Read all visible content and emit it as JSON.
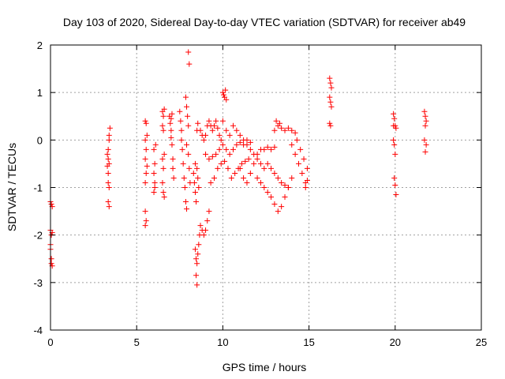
{
  "chart_data": {
    "type": "scatter",
    "title": "Day 103 of 2020, Sidereal Day-to-day VTEC variation (SDTVAR) for receiver ab49",
    "xlabel": "GPS time / hours",
    "ylabel": "SDTVAR / TECUs",
    "xlim": [
      0,
      25
    ],
    "ylim": [
      -4,
      2
    ],
    "xticks": [
      0,
      5,
      10,
      15,
      20,
      25
    ],
    "yticks": [
      -4,
      -3,
      -2,
      -1,
      0,
      1,
      2
    ],
    "xtick_labels": [
      "0",
      "5",
      "10",
      "15",
      "20",
      "25"
    ],
    "ytick_labels": [
      "-4",
      "-3",
      "-2",
      "-1",
      "0",
      "1",
      "2"
    ],
    "grid": true,
    "marker": "+",
    "color": "#ff0000",
    "series": [
      {
        "name": "SDTVAR",
        "points": [
          [
            0.0,
            -1.3
          ],
          [
            0.05,
            -1.35
          ],
          [
            0.1,
            -1.4
          ],
          [
            0.0,
            -1.9
          ],
          [
            0.05,
            -2.0
          ],
          [
            0.1,
            -1.95
          ],
          [
            0.0,
            -2.3
          ],
          [
            0.05,
            -2.5
          ],
          [
            0.05,
            -2.6
          ],
          [
            0.1,
            -2.65
          ],
          [
            0.0,
            -2.2
          ],
          [
            3.3,
            -0.3
          ],
          [
            3.35,
            -0.4
          ],
          [
            3.4,
            -0.5
          ],
          [
            3.35,
            -0.2
          ],
          [
            3.4,
            0.0
          ],
          [
            3.4,
            0.1
          ],
          [
            3.45,
            0.25
          ],
          [
            3.35,
            -0.9
          ],
          [
            3.4,
            -1.0
          ],
          [
            3.35,
            -1.3
          ],
          [
            3.4,
            -1.4
          ],
          [
            3.35,
            -0.7
          ],
          [
            3.3,
            -0.55
          ],
          [
            5.5,
            0.4
          ],
          [
            5.55,
            0.35
          ],
          [
            5.5,
            0.0
          ],
          [
            5.55,
            -0.2
          ],
          [
            5.5,
            -0.4
          ],
          [
            5.55,
            -0.7
          ],
          [
            5.5,
            -0.9
          ],
          [
            5.5,
            -1.5
          ],
          [
            5.55,
            -1.7
          ],
          [
            5.5,
            -1.8
          ],
          [
            5.6,
            -0.55
          ],
          [
            5.6,
            0.1
          ],
          [
            6.0,
            -0.2
          ],
          [
            6.05,
            -0.5
          ],
          [
            6.0,
            -0.7
          ],
          [
            6.05,
            -0.9
          ],
          [
            6.1,
            -0.1
          ],
          [
            6.0,
            -1.1
          ],
          [
            6.05,
            -1.0
          ],
          [
            6.5,
            0.6
          ],
          [
            6.55,
            0.5
          ],
          [
            6.5,
            0.3
          ],
          [
            6.55,
            0.2
          ],
          [
            6.5,
            -0.4
          ],
          [
            6.55,
            -0.6
          ],
          [
            6.5,
            -0.9
          ],
          [
            6.55,
            -1.1
          ],
          [
            6.6,
            -1.2
          ],
          [
            6.6,
            -0.3
          ],
          [
            6.6,
            0.65
          ],
          [
            6.9,
            0.5
          ],
          [
            6.95,
            0.35
          ],
          [
            7.0,
            0.2
          ],
          [
            7.0,
            0.05
          ],
          [
            7.05,
            -0.1
          ],
          [
            7.1,
            -0.4
          ],
          [
            7.1,
            -0.6
          ],
          [
            7.15,
            -0.8
          ],
          [
            7.0,
            0.45
          ],
          [
            7.05,
            0.55
          ],
          [
            7.5,
            0.6
          ],
          [
            7.55,
            0.4
          ],
          [
            7.6,
            0.2
          ],
          [
            7.6,
            0.0
          ],
          [
            7.65,
            -0.2
          ],
          [
            7.7,
            -0.5
          ],
          [
            7.75,
            -0.8
          ],
          [
            7.8,
            -1.0
          ],
          [
            7.85,
            -1.3
          ],
          [
            7.9,
            -1.45
          ],
          [
            7.85,
            0.9
          ],
          [
            7.9,
            0.7
          ],
          [
            7.95,
            0.5
          ],
          [
            8.0,
            0.3
          ],
          [
            7.9,
            -0.1
          ],
          [
            8.0,
            -0.3
          ],
          [
            8.05,
            -0.6
          ],
          [
            8.1,
            -0.9
          ],
          [
            8.0,
            1.85
          ],
          [
            8.05,
            1.6
          ],
          [
            8.3,
            -0.7
          ],
          [
            8.35,
            -0.9
          ],
          [
            8.4,
            -1.1
          ],
          [
            8.45,
            -1.3
          ],
          [
            8.4,
            -0.5
          ],
          [
            8.5,
            -0.6
          ],
          [
            8.55,
            -0.8
          ],
          [
            8.6,
            -1.0
          ],
          [
            8.5,
            0.2
          ],
          [
            8.55,
            0.35
          ],
          [
            8.4,
            -2.3
          ],
          [
            8.45,
            -2.5
          ],
          [
            8.5,
            -2.6
          ],
          [
            8.55,
            -2.4
          ],
          [
            8.45,
            -2.85
          ],
          [
            8.5,
            -3.05
          ],
          [
            8.6,
            -2.2
          ],
          [
            8.65,
            -2.0
          ],
          [
            8.7,
            -1.8
          ],
          [
            8.8,
            -1.9
          ],
          [
            8.9,
            -2.0
          ],
          [
            9.0,
            -1.9
          ],
          [
            9.1,
            -1.7
          ],
          [
            9.2,
            -1.5
          ],
          [
            8.7,
            0.2
          ],
          [
            8.8,
            0.1
          ],
          [
            8.9,
            0.0
          ],
          [
            9.0,
            0.1
          ],
          [
            9.1,
            0.3
          ],
          [
            9.2,
            0.4
          ],
          [
            9.3,
            0.3
          ],
          [
            9.4,
            0.2
          ],
          [
            9.5,
            0.3
          ],
          [
            9.6,
            0.4
          ],
          [
            9.7,
            0.25
          ],
          [
            9.8,
            0.1
          ],
          [
            9.9,
            0.0
          ],
          [
            9.0,
            -0.3
          ],
          [
            9.2,
            -0.4
          ],
          [
            9.4,
            -0.35
          ],
          [
            9.6,
            -0.3
          ],
          [
            9.8,
            -0.2
          ],
          [
            10.0,
            -0.1
          ],
          [
            10.2,
            -0.2
          ],
          [
            10.4,
            -0.3
          ],
          [
            10.6,
            -0.2
          ],
          [
            10.8,
            -0.1
          ],
          [
            11.0,
            -0.05
          ],
          [
            11.2,
            -0.1
          ],
          [
            11.4,
            0.0
          ],
          [
            11.6,
            -0.05
          ],
          [
            9.3,
            -0.9
          ],
          [
            9.5,
            -0.8
          ],
          [
            9.7,
            -0.6
          ],
          [
            9.9,
            -0.5
          ],
          [
            10.1,
            -0.45
          ],
          [
            10.3,
            -0.6
          ],
          [
            10.5,
            -0.8
          ],
          [
            10.7,
            -0.7
          ],
          [
            10.9,
            -0.6
          ],
          [
            11.1,
            -0.5
          ],
          [
            11.3,
            -0.45
          ],
          [
            11.5,
            -0.4
          ],
          [
            10.0,
            1.0
          ],
          [
            10.05,
            0.95
          ],
          [
            10.1,
            0.9
          ],
          [
            10.15,
            1.05
          ],
          [
            10.2,
            0.85
          ],
          [
            10.0,
            0.4
          ],
          [
            10.2,
            0.2
          ],
          [
            10.4,
            0.1
          ],
          [
            10.6,
            0.3
          ],
          [
            10.8,
            0.2
          ],
          [
            11.0,
            0.1
          ],
          [
            11.2,
            0.0
          ],
          [
            11.4,
            -0.1
          ],
          [
            11.6,
            -0.2
          ],
          [
            11.8,
            -0.3
          ],
          [
            12.0,
            -0.4
          ],
          [
            12.2,
            -0.5
          ],
          [
            12.4,
            -0.6
          ],
          [
            11.0,
            -0.6
          ],
          [
            11.2,
            -0.8
          ],
          [
            11.4,
            -0.9
          ],
          [
            11.6,
            -0.7
          ],
          [
            11.8,
            -0.5
          ],
          [
            12.0,
            -0.3
          ],
          [
            12.2,
            -0.2
          ],
          [
            12.4,
            -0.2
          ],
          [
            12.6,
            -0.15
          ],
          [
            12.8,
            -0.2
          ],
          [
            13.0,
            -0.15
          ],
          [
            12.0,
            -0.8
          ],
          [
            12.2,
            -0.9
          ],
          [
            12.4,
            -1.0
          ],
          [
            12.6,
            -1.1
          ],
          [
            12.8,
            -1.2
          ],
          [
            13.0,
            -1.35
          ],
          [
            13.2,
            -1.5
          ],
          [
            13.4,
            -1.4
          ],
          [
            13.6,
            -1.2
          ],
          [
            13.8,
            -1.0
          ],
          [
            14.0,
            -0.8
          ],
          [
            12.6,
            -0.5
          ],
          [
            12.8,
            -0.6
          ],
          [
            13.0,
            -0.7
          ],
          [
            13.2,
            -0.8
          ],
          [
            13.4,
            -0.9
          ],
          [
            13.6,
            -0.95
          ],
          [
            13.8,
            -1.0
          ],
          [
            13.0,
            0.2
          ],
          [
            13.2,
            0.3
          ],
          [
            13.4,
            0.25
          ],
          [
            13.6,
            0.2
          ],
          [
            13.8,
            0.25
          ],
          [
            14.0,
            0.2
          ],
          [
            14.2,
            0.15
          ],
          [
            13.1,
            0.4
          ],
          [
            13.3,
            0.35
          ],
          [
            14.0,
            -0.1
          ],
          [
            14.2,
            -0.3
          ],
          [
            14.4,
            -0.5
          ],
          [
            14.6,
            -0.7
          ],
          [
            14.8,
            -0.9
          ],
          [
            14.5,
            -0.2
          ],
          [
            14.7,
            -0.4
          ],
          [
            14.9,
            -0.6
          ],
          [
            14.3,
            0.0
          ],
          [
            14.9,
            -0.85
          ],
          [
            14.8,
            -1.0
          ],
          [
            16.2,
            1.3
          ],
          [
            16.25,
            1.2
          ],
          [
            16.3,
            1.1
          ],
          [
            16.2,
            0.9
          ],
          [
            16.25,
            0.8
          ],
          [
            16.3,
            0.7
          ],
          [
            16.2,
            0.35
          ],
          [
            16.25,
            0.3
          ],
          [
            19.9,
            0.55
          ],
          [
            19.95,
            0.45
          ],
          [
            20.0,
            0.3
          ],
          [
            20.05,
            0.25
          ],
          [
            19.9,
            0.0
          ],
          [
            19.95,
            -0.1
          ],
          [
            20.0,
            -0.3
          ],
          [
            19.95,
            -0.8
          ],
          [
            20.0,
            -0.95
          ],
          [
            20.05,
            -1.15
          ],
          [
            19.9,
            0.3
          ],
          [
            21.7,
            0.6
          ],
          [
            21.75,
            0.5
          ],
          [
            21.8,
            0.4
          ],
          [
            21.75,
            0.3
          ],
          [
            21.7,
            0.0
          ],
          [
            21.8,
            -0.1
          ],
          [
            21.75,
            -0.25
          ]
        ]
      }
    ]
  }
}
